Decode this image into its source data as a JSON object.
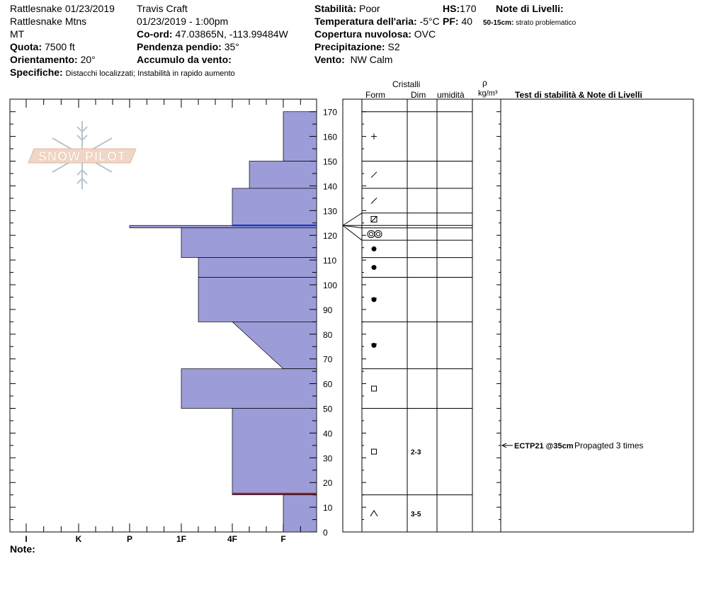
{
  "header": {
    "location": "Rattlesnake 01/23/2019",
    "range": "Rattlesnake Mtns",
    "state": "MT",
    "quota_label": "Quota:",
    "quota_value": "7500 ft",
    "orient_label": "Orientamento:",
    "orient_value": "20°",
    "specifiche_label": "Specifiche:",
    "specifiche_value": "Distacchi localizzati;  Instabilità in rapido aumento",
    "observer": "Travis  Craft",
    "datetime": "01/23/2019 - 1:00pm",
    "coord_label": "Co-ord:",
    "coord_value": "47.03865N, -113.99484W",
    "pendenza_label": "Pendenza pendio:",
    "pendenza_value": "35°",
    "accumulo_label": "Accumulo da vento:",
    "stab_label": "Stabilità:",
    "stab_value": "Poor",
    "temp_label": "Temperatura dell'aria:",
    "temp_value": "-5°C",
    "cop_label": "Copertura nuvolosa:",
    "cop_value": "OVC",
    "prec_label": "Precipitazione:",
    "prec_value": "S2",
    "vento_label": "Vento:",
    "vento_value": "NW Calm",
    "hs_label": "HS:",
    "hs_value": "170",
    "pf_label": "PF:",
    "pf_value": "40",
    "note_livelli_label": "Note di Livelli:",
    "note_livelli_range": "50-15cm:",
    "note_livelli_text": "strato problematico"
  },
  "logo_text": "SNOW PILOT",
  "columns": {
    "cristalli": "Cristalli",
    "form": "Form",
    "dim": "Dim",
    "umidita": "umidità",
    "rho": "ρ",
    "density_unit": "kg/m³",
    "tests": "Test di stabilità & Note di Livelli"
  },
  "footer": {
    "note_label": "Note:"
  },
  "colors": {
    "fill": "#9c9cd8",
    "blue_line": "#1030c0",
    "red_line": "#a01818"
  },
  "chart_data": {
    "type": "bar",
    "orientation": "horizontal",
    "y_range": [
      0,
      170
    ],
    "y_ticks": [
      0,
      10,
      20,
      30,
      40,
      50,
      60,
      70,
      80,
      90,
      100,
      110,
      120,
      130,
      140,
      150,
      160,
      170
    ],
    "x_categories": [
      "I",
      "K",
      "P",
      "1F",
      "4F",
      "F"
    ],
    "x_positions": {
      "I": 1,
      "K": 2,
      "P": 3,
      "1F": 4,
      "4F": 5,
      "F": 6,
      "edge": 6.65
    },
    "layers": [
      {
        "bottom": 150,
        "top": 170,
        "hardness": "F"
      },
      {
        "bottom": 139,
        "top": 150,
        "hardness": "4F-"
      },
      {
        "bottom": 124,
        "top": 139,
        "hardness": "4F"
      },
      {
        "bottom": 123,
        "top": 124,
        "hardness": "P"
      },
      {
        "bottom": 111,
        "top": 123,
        "hardness": "1F"
      },
      {
        "bottom": 103,
        "top": 111,
        "hardness": "1F-"
      },
      {
        "bottom": 85,
        "top": 103,
        "hardness": "1F-"
      },
      {
        "bottom": 66,
        "top": 85,
        "hardness_top": "4F",
        "hardness_bottom": "F"
      },
      {
        "bottom": 50,
        "top": 66,
        "hardness": "1F"
      },
      {
        "bottom": 15,
        "top": 50,
        "hardness": "4F"
      },
      {
        "bottom": 0,
        "top": 15,
        "hardness": "F"
      }
    ],
    "marker_lines": [
      {
        "depth": 124,
        "color": "blue",
        "from": "4F"
      },
      {
        "depth": 15.5,
        "color": "red",
        "from": "4F"
      }
    ],
    "crystal_layer_boundaries": [
      170,
      150,
      139,
      129,
      124,
      123,
      118,
      111,
      103,
      85,
      66,
      50,
      15,
      0
    ],
    "crystals": [
      {
        "depth": 160,
        "form": "+"
      },
      {
        "depth": 144.5,
        "form": "/"
      },
      {
        "depth": 134,
        "form": "/"
      },
      {
        "depth": 126.5,
        "form": "faceted-rounding"
      },
      {
        "depth": 120.5,
        "form": "melt-freeze-cluster"
      },
      {
        "depth": 114.5,
        "form": "rounded"
      },
      {
        "depth": 107,
        "form": "rounded"
      },
      {
        "depth": 94,
        "form": "rounded-faceting"
      },
      {
        "depth": 75.5,
        "form": "rounded-faceting"
      },
      {
        "depth": 58,
        "form": "faceted"
      },
      {
        "depth": 32.5,
        "form": "faceted",
        "dim": "2-3"
      },
      {
        "depth": 7.5,
        "form": "depth-hoar",
        "dim": "3-5"
      }
    ],
    "tests": [
      {
        "depth": 35,
        "code": "ECTP21 @35cm",
        "note": "Propagted 3 times"
      }
    ]
  }
}
